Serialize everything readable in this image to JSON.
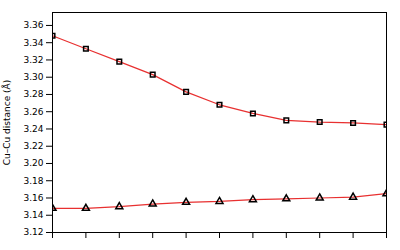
{
  "chart_data": {
    "type": "line",
    "ylabel": "Cu–Cu distance (Å)",
    "x": [
      0,
      1,
      2,
      3,
      4,
      5,
      6,
      7,
      8,
      9,
      10
    ],
    "series": [
      {
        "color": "#e83030",
        "marker": "square",
        "values": [
          3.348,
          3.333,
          3.318,
          3.303,
          3.283,
          3.268,
          3.258,
          3.25,
          3.248,
          3.247,
          3.245
        ]
      },
      {
        "color": "#e83030",
        "marker": "triangle",
        "values": [
          3.148,
          3.148,
          3.15,
          3.153,
          3.155,
          3.156,
          3.158,
          3.159,
          3.16,
          3.161,
          3.165
        ]
      }
    ],
    "xlim": [
      0,
      10
    ],
    "xticks": [
      0,
      1,
      2,
      3,
      4,
      5,
      6,
      7,
      8,
      9,
      10
    ],
    "ylim": [
      3.12,
      3.375
    ],
    "yticks": [
      3.12,
      3.14,
      3.16,
      3.18,
      {
        "value": 3.2,
        "label": "3.20"
      },
      3.22,
      3.24,
      3.26,
      3.28,
      {
        "value": 3.3,
        "label": "3.30"
      },
      3.32,
      3.34,
      3.36
    ],
    "tick_labels": "y",
    "grid": false
  }
}
